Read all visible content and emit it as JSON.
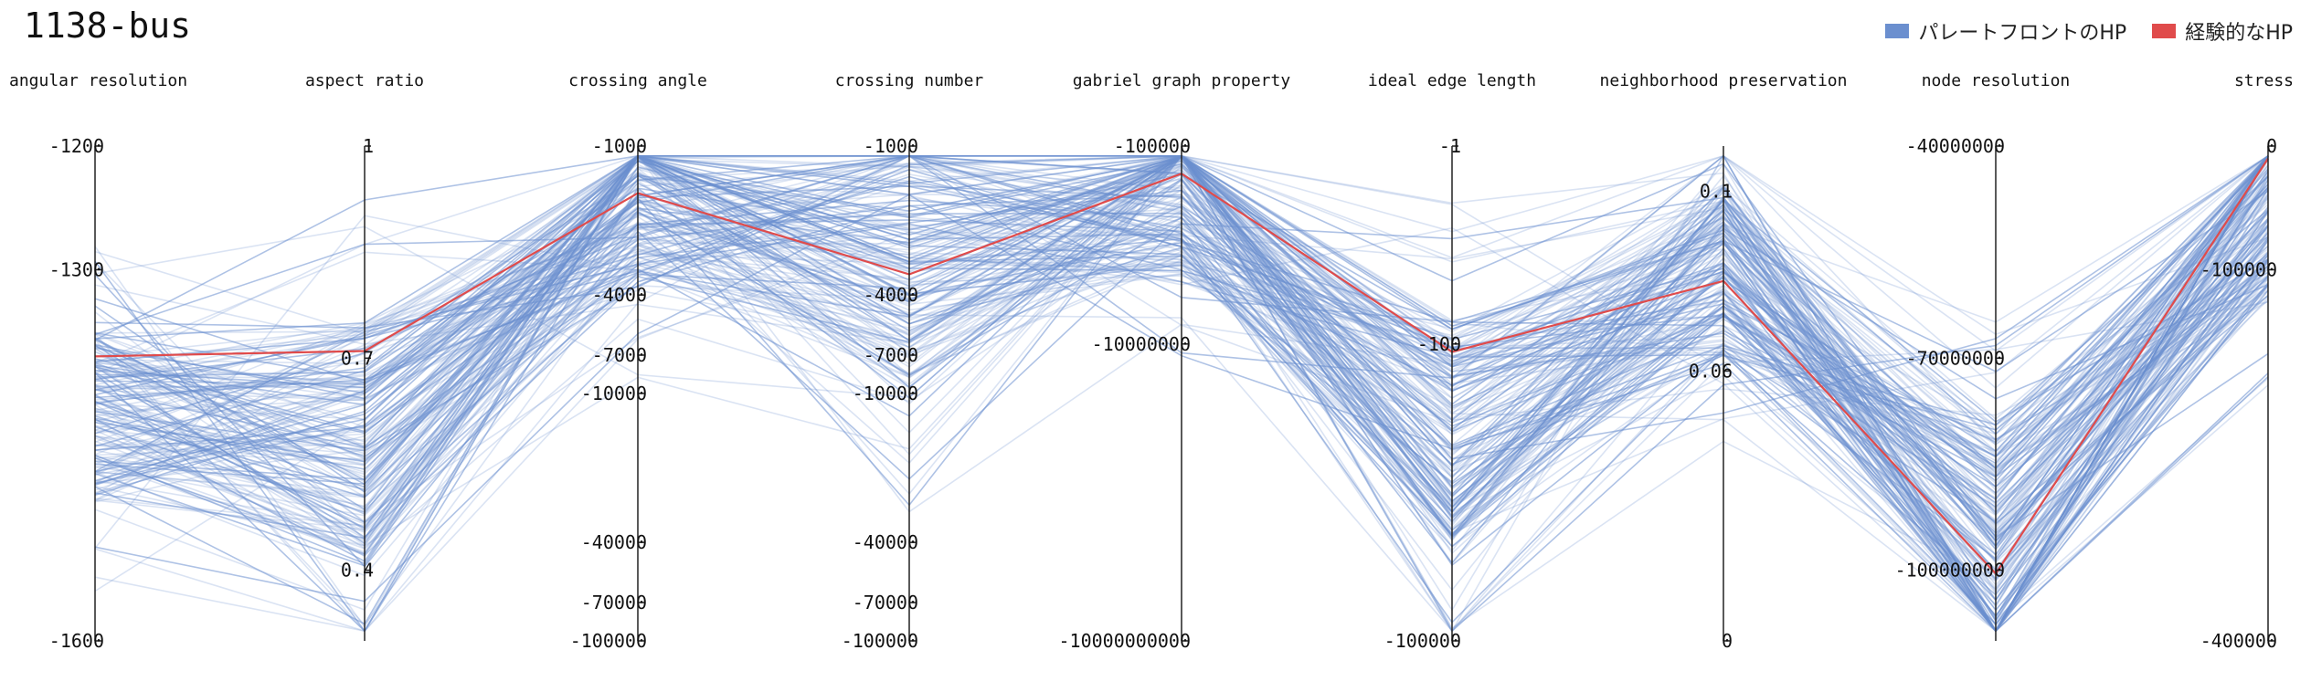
{
  "chart_data": {
    "type": "parallel-coordinates",
    "title": "1138-bus",
    "legend": {
      "placement": "top-right",
      "entries": [
        {
          "name": "パレートフロントのHP",
          "color": "#6b8fcf"
        },
        {
          "name": "経験的なHP",
          "color": "#e04b4b"
        }
      ]
    },
    "axes": [
      {
        "label": "angular resolution",
        "scale": "linear",
        "domain": [
          -1600,
          -1200
        ],
        "ticks": [
          {
            "value": -1200,
            "label": "-1200"
          },
          {
            "value": -1300,
            "label": "-1300"
          },
          {
            "value": -1600,
            "label": "-1600"
          }
        ]
      },
      {
        "label": "aspect ratio",
        "scale": "linear",
        "domain": [
          0.3,
          1
        ],
        "ticks": [
          {
            "value": 1,
            "label": "1"
          },
          {
            "value": 0.7,
            "label": "0.7"
          },
          {
            "value": 0.4,
            "label": "0.4"
          }
        ]
      },
      {
        "label": "crossing angle",
        "scale": "neglog",
        "domain": [
          -100000,
          -1000
        ],
        "ticks": [
          {
            "value": -1000,
            "label": "-1000"
          },
          {
            "value": -4000,
            "label": "-4000"
          },
          {
            "value": -7000,
            "label": "-7000"
          },
          {
            "value": -10000,
            "label": "-10000"
          },
          {
            "value": -40000,
            "label": "-40000"
          },
          {
            "value": -70000,
            "label": "-70000"
          },
          {
            "value": -100000,
            "label": "-100000"
          }
        ]
      },
      {
        "label": "crossing number",
        "scale": "neglog",
        "domain": [
          -100000,
          -1000
        ],
        "ticks": [
          {
            "value": -1000,
            "label": "-1000"
          },
          {
            "value": -4000,
            "label": "-4000"
          },
          {
            "value": -7000,
            "label": "-7000"
          },
          {
            "value": -10000,
            "label": "-10000"
          },
          {
            "value": -40000,
            "label": "-40000"
          },
          {
            "value": -70000,
            "label": "-70000"
          },
          {
            "value": -100000,
            "label": "-100000"
          }
        ]
      },
      {
        "label": "gabriel graph property",
        "scale": "neglog",
        "domain": [
          -10000000000,
          -100000
        ],
        "ticks": [
          {
            "value": -100000,
            "label": "-100000"
          },
          {
            "value": -10000000,
            "label": "-10000000"
          },
          {
            "value": -10000000000,
            "label": "-10000000000"
          }
        ]
      },
      {
        "label": "ideal edge length",
        "scale": "neglog",
        "domain": [
          -100000,
          -1
        ],
        "ticks": [
          {
            "value": -1,
            "label": "-1"
          },
          {
            "value": -100,
            "label": "-100"
          },
          {
            "value": -100000,
            "label": "-100000"
          }
        ]
      },
      {
        "label": "neighborhood preservation",
        "scale": "linear",
        "domain": [
          0,
          0.11
        ],
        "ticks": [
          {
            "value": 0.1,
            "label": "0.1"
          },
          {
            "value": 0.06,
            "label": "0.06"
          },
          {
            "value": 0,
            "label": "0"
          }
        ]
      },
      {
        "label": "node resolution",
        "scale": "linear",
        "domain": [
          -110000000,
          -40000000
        ],
        "ticks": [
          {
            "value": -40000000,
            "label": "-40000000"
          },
          {
            "value": -70000000,
            "label": "-70000000"
          },
          {
            "value": -100000000,
            "label": "-100000000"
          }
        ]
      },
      {
        "label": "stress",
        "scale": "linear",
        "domain": [
          -400000,
          0
        ],
        "ticks": [
          {
            "value": 0,
            "label": "0"
          },
          {
            "value": -100000,
            "label": "-100000"
          },
          {
            "value": -400000,
            "label": "-400000"
          }
        ]
      }
    ],
    "series": [
      {
        "color": "#e04b4b",
        "values": [
          -1370,
          0.71,
          -1550,
          -3300,
          -190000,
          -120,
          0.08,
          -100500000,
          -10000
        ]
      }
    ],
    "series_color": "#6b8fcf"
  }
}
